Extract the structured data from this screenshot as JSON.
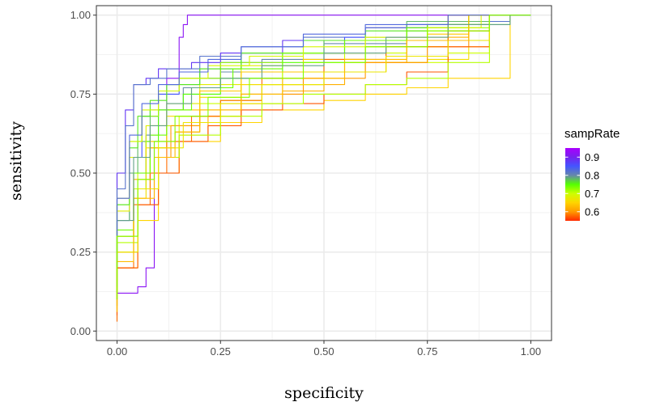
{
  "chart_data": {
    "type": "line",
    "title": "",
    "xlabel": "specificity",
    "ylabel": "sensitivity",
    "xlim": [
      -0.05,
      1.05
    ],
    "ylim": [
      -0.03,
      1.03
    ],
    "x_ticks": [
      0,
      0.25,
      0.5,
      0.75,
      1
    ],
    "x_tick_labels": [
      "0.00",
      "0.25",
      "0.50",
      "0.75",
      "1.00"
    ],
    "y_ticks": [
      0,
      0.25,
      0.5,
      0.75,
      1
    ],
    "y_tick_labels": [
      "0.00",
      "0.25",
      "0.50",
      "0.75",
      "1.00"
    ],
    "grid": true,
    "legend": {
      "title": "sampRate",
      "position": "right",
      "range": [
        0.55,
        0.95
      ],
      "breaks": [
        0.9,
        0.8,
        0.7,
        0.6
      ],
      "labels": [
        "0.9",
        "0.8",
        "0.7",
        "0.6"
      ],
      "colors": [
        "#ff2a00",
        "#ff9900",
        "#ffd400",
        "#ccff00",
        "#55ff00",
        "#6688aa",
        "#4455ff",
        "#7722ee",
        "#aa00ff"
      ]
    },
    "series": [
      {
        "sampRate": 0.92,
        "x": [
          0,
          0.05,
          0.07,
          0.09,
          0.12,
          0.15,
          0.16,
          0.17,
          0.19,
          0.4,
          0.7,
          0.9,
          1
        ],
        "y": [
          0.08,
          0.12,
          0.14,
          0.2,
          0.6,
          0.8,
          0.93,
          0.97,
          1,
          1,
          1,
          1,
          1
        ]
      },
      {
        "sampRate": 0.88,
        "x": [
          0,
          0.02,
          0.04,
          0.07,
          0.1,
          0.18,
          0.25,
          0.4,
          0.6,
          0.8,
          1
        ],
        "y": [
          0.3,
          0.5,
          0.7,
          0.78,
          0.8,
          0.83,
          0.85,
          0.88,
          0.92,
          0.96,
          1
        ]
      },
      {
        "sampRate": 0.82,
        "x": [
          0,
          0.02,
          0.04,
          0.08,
          0.12,
          0.2,
          0.3,
          0.45,
          0.6,
          0.8,
          0.95,
          1
        ],
        "y": [
          0.25,
          0.45,
          0.65,
          0.78,
          0.8,
          0.83,
          0.87,
          0.9,
          0.93,
          0.96,
          0.98,
          1
        ]
      },
      {
        "sampRate": 0.85,
        "x": [
          0,
          0.03,
          0.06,
          0.1,
          0.15,
          0.25,
          0.4,
          0.55,
          0.7,
          0.85,
          1
        ],
        "y": [
          0.15,
          0.35,
          0.55,
          0.68,
          0.75,
          0.8,
          0.85,
          0.88,
          0.93,
          0.97,
          1
        ]
      },
      {
        "sampRate": 0.8,
        "x": [
          0,
          0.04,
          0.07,
          0.1,
          0.16,
          0.25,
          0.35,
          0.5,
          0.7,
          0.9,
          1
        ],
        "y": [
          0.1,
          0.3,
          0.5,
          0.62,
          0.7,
          0.77,
          0.82,
          0.86,
          0.91,
          0.97,
          1
        ]
      },
      {
        "sampRate": 0.78,
        "x": [
          0,
          0.03,
          0.05,
          0.08,
          0.12,
          0.2,
          0.3,
          0.5,
          0.7,
          0.9,
          1
        ],
        "y": [
          0.12,
          0.35,
          0.5,
          0.6,
          0.7,
          0.78,
          0.83,
          0.88,
          0.92,
          0.98,
          1
        ]
      },
      {
        "sampRate": 0.75,
        "x": [
          0,
          0.04,
          0.07,
          0.1,
          0.16,
          0.25,
          0.4,
          0.6,
          0.8,
          0.95,
          1
        ],
        "y": [
          0.12,
          0.3,
          0.45,
          0.6,
          0.7,
          0.75,
          0.8,
          0.85,
          0.9,
          0.97,
          1
        ]
      },
      {
        "sampRate": 0.72,
        "x": [
          0,
          0.03,
          0.06,
          0.1,
          0.15,
          0.25,
          0.4,
          0.55,
          0.75,
          0.9,
          1
        ],
        "y": [
          0.18,
          0.4,
          0.6,
          0.68,
          0.76,
          0.8,
          0.85,
          0.88,
          0.92,
          0.96,
          1
        ]
      },
      {
        "sampRate": 0.7,
        "x": [
          0,
          0.04,
          0.08,
          0.12,
          0.2,
          0.3,
          0.4,
          0.55,
          0.7,
          0.85,
          1
        ],
        "y": [
          0.1,
          0.25,
          0.45,
          0.58,
          0.65,
          0.72,
          0.78,
          0.82,
          0.88,
          0.95,
          1
        ]
      },
      {
        "sampRate": 0.7,
        "x": [
          0,
          0.05,
          0.1,
          0.15,
          0.25,
          0.35,
          0.5,
          0.65,
          0.8,
          0.9,
          1
        ],
        "y": [
          0.1,
          0.3,
          0.5,
          0.6,
          0.68,
          0.73,
          0.78,
          0.82,
          0.85,
          0.88,
          1
        ]
      },
      {
        "sampRate": 0.68,
        "x": [
          0,
          0.03,
          0.07,
          0.12,
          0.2,
          0.3,
          0.45,
          0.6,
          0.75,
          0.9,
          1
        ],
        "y": [
          0.15,
          0.38,
          0.55,
          0.65,
          0.72,
          0.78,
          0.84,
          0.88,
          0.93,
          0.97,
          1
        ]
      },
      {
        "sampRate": 0.66,
        "x": [
          0,
          0.04,
          0.07,
          0.12,
          0.2,
          0.3,
          0.45,
          0.6,
          0.75,
          0.85,
          0.9,
          1
        ],
        "y": [
          0.1,
          0.25,
          0.42,
          0.58,
          0.68,
          0.74,
          0.78,
          0.82,
          0.85,
          0.86,
          0.9,
          1
        ]
      },
      {
        "sampRate": 0.65,
        "x": [
          0,
          0.05,
          0.1,
          0.15,
          0.25,
          0.35,
          0.5,
          0.6,
          0.7,
          0.8,
          0.95,
          1
        ],
        "y": [
          0.05,
          0.2,
          0.35,
          0.5,
          0.6,
          0.66,
          0.7,
          0.73,
          0.75,
          0.77,
          0.8,
          1
        ]
      },
      {
        "sampRate": 0.64,
        "x": [
          0,
          0.04,
          0.08,
          0.12,
          0.2,
          0.3,
          0.45,
          0.6,
          0.75,
          0.85,
          1
        ],
        "y": [
          0.1,
          0.3,
          0.5,
          0.6,
          0.7,
          0.76,
          0.82,
          0.86,
          0.9,
          0.94,
          1
        ]
      },
      {
        "sampRate": 0.62,
        "x": [
          0,
          0.05,
          0.1,
          0.15,
          0.22,
          0.3,
          0.4,
          0.55,
          0.7,
          0.85,
          1
        ],
        "y": [
          0.08,
          0.25,
          0.4,
          0.55,
          0.62,
          0.68,
          0.72,
          0.78,
          0.85,
          0.93,
          1
        ]
      },
      {
        "sampRate": 0.62,
        "x": [
          0,
          0.04,
          0.08,
          0.14,
          0.2,
          0.3,
          0.4,
          0.5,
          0.65,
          0.8,
          1
        ],
        "y": [
          0.1,
          0.3,
          0.48,
          0.58,
          0.63,
          0.68,
          0.72,
          0.76,
          0.82,
          0.9,
          1
        ]
      },
      {
        "sampRate": 0.6,
        "x": [
          0,
          0.05,
          0.09,
          0.13,
          0.2,
          0.3,
          0.45,
          0.6,
          0.75,
          0.85,
          0.9,
          1
        ],
        "y": [
          0.06,
          0.25,
          0.45,
          0.55,
          0.65,
          0.7,
          0.75,
          0.8,
          0.85,
          0.9,
          0.95,
          1
        ]
      },
      {
        "sampRate": 0.58,
        "x": [
          0,
          0.04,
          0.08,
          0.12,
          0.18,
          0.25,
          0.35,
          0.5,
          0.65,
          0.8,
          0.9,
          1
        ],
        "y": [
          0.03,
          0.2,
          0.4,
          0.5,
          0.6,
          0.68,
          0.73,
          0.8,
          0.86,
          0.9,
          0.95,
          1
        ]
      },
      {
        "sampRate": 0.57,
        "x": [
          0,
          0.05,
          0.1,
          0.15,
          0.22,
          0.3,
          0.4,
          0.5,
          0.6,
          0.7,
          0.8,
          0.9,
          1
        ],
        "y": [
          0.05,
          0.2,
          0.4,
          0.5,
          0.6,
          0.65,
          0.7,
          0.72,
          0.75,
          0.78,
          0.82,
          0.9,
          1
        ]
      },
      {
        "sampRate": 0.76,
        "x": [
          0,
          0.03,
          0.05,
          0.08,
          0.12,
          0.2,
          0.3,
          0.45,
          0.6,
          0.75,
          0.9,
          1
        ],
        "y": [
          0.2,
          0.4,
          0.58,
          0.68,
          0.73,
          0.78,
          0.83,
          0.88,
          0.92,
          0.95,
          0.97,
          1
        ]
      },
      {
        "sampRate": 0.74,
        "x": [
          0,
          0.04,
          0.08,
          0.12,
          0.18,
          0.28,
          0.4,
          0.55,
          0.7,
          0.85,
          1
        ],
        "y": [
          0.12,
          0.32,
          0.5,
          0.62,
          0.7,
          0.77,
          0.83,
          0.88,
          0.92,
          0.96,
          1
        ]
      },
      {
        "sampRate": 0.71,
        "x": [
          0,
          0.05,
          0.1,
          0.15,
          0.25,
          0.35,
          0.45,
          0.6,
          0.7,
          0.8,
          0.9,
          1
        ],
        "y": [
          0.08,
          0.28,
          0.45,
          0.55,
          0.62,
          0.68,
          0.72,
          0.75,
          0.78,
          0.8,
          0.85,
          1
        ]
      },
      {
        "sampRate": 0.69,
        "x": [
          0,
          0.03,
          0.06,
          0.1,
          0.15,
          0.22,
          0.32,
          0.45,
          0.6,
          0.75,
          0.88,
          1
        ],
        "y": [
          0.18,
          0.42,
          0.6,
          0.7,
          0.76,
          0.8,
          0.84,
          0.87,
          0.9,
          0.93,
          0.96,
          1
        ]
      },
      {
        "sampRate": 0.67,
        "x": [
          0,
          0.05,
          0.1,
          0.16,
          0.25,
          0.35,
          0.5,
          0.65,
          0.8,
          0.9,
          1
        ],
        "y": [
          0.07,
          0.25,
          0.45,
          0.58,
          0.66,
          0.72,
          0.78,
          0.82,
          0.87,
          0.92,
          1
        ]
      },
      {
        "sampRate": 0.63,
        "x": [
          0,
          0.04,
          0.09,
          0.14,
          0.2,
          0.3,
          0.4,
          0.55,
          0.7,
          0.85,
          1
        ],
        "y": [
          0.06,
          0.22,
          0.42,
          0.55,
          0.63,
          0.7,
          0.75,
          0.8,
          0.86,
          0.92,
          1
        ]
      },
      {
        "sampRate": 0.79,
        "x": [
          0,
          0.04,
          0.08,
          0.12,
          0.18,
          0.25,
          0.35,
          0.5,
          0.65,
          0.8,
          0.95,
          1
        ],
        "y": [
          0.14,
          0.35,
          0.55,
          0.65,
          0.72,
          0.77,
          0.8,
          0.84,
          0.88,
          0.93,
          0.97,
          1
        ]
      },
      {
        "sampRate": 0.83,
        "x": [
          0,
          0.03,
          0.06,
          0.1,
          0.15,
          0.22,
          0.3,
          0.45,
          0.6,
          0.8,
          1
        ],
        "y": [
          0.2,
          0.42,
          0.62,
          0.72,
          0.78,
          0.82,
          0.86,
          0.9,
          0.94,
          0.97,
          1
        ]
      },
      {
        "sampRate": 0.73,
        "x": [
          0,
          0.05,
          0.09,
          0.14,
          0.22,
          0.32,
          0.45,
          0.6,
          0.75,
          0.9,
          1
        ],
        "y": [
          0.1,
          0.3,
          0.48,
          0.6,
          0.68,
          0.74,
          0.8,
          0.85,
          0.9,
          0.95,
          1
        ]
      }
    ]
  }
}
